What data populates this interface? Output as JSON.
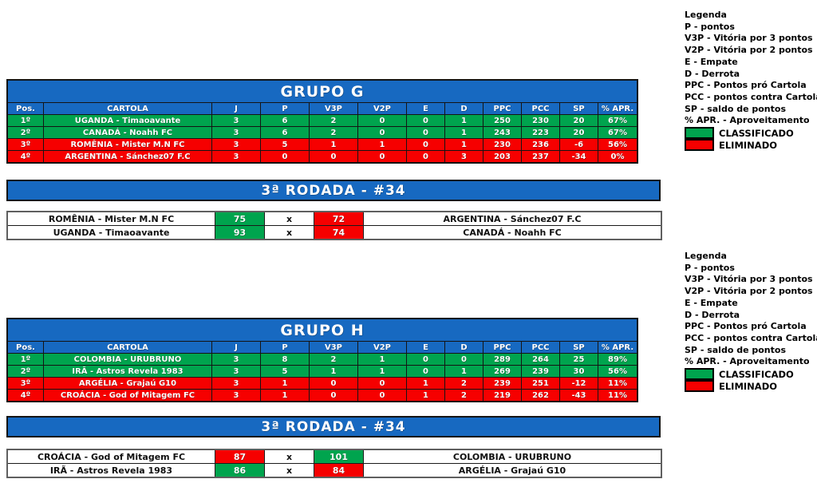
{
  "colors": {
    "blue": "#1769C1",
    "green": "#00A44E",
    "red": "#F60000"
  },
  "legend": {
    "title": "Legenda",
    "items": [
      "P - pontos",
      "V3P - Vitória por 3 pontos",
      "V2P - Vitória por 2 pontos",
      "E - Empate",
      "D - Derrota",
      "PPC - Pontos pró Cartola",
      "PCC - pontos contra Cartola",
      "SP - saldo de pontos",
      "% APR. - Aproveitamento"
    ],
    "classified_label": "CLASSIFICADO",
    "eliminated_label": "ELIMINADO"
  },
  "tables": [
    {
      "title": "GRUPO G",
      "headers": [
        "Pos.",
        "CARTOLA",
        "J",
        "P",
        "V3P",
        "V2P",
        "E",
        "D",
        "PPC",
        "PCC",
        "SP",
        "% APR."
      ],
      "rows": [
        {
          "pos": "1º",
          "cartola": "UGANDA - Timaoavante",
          "status": "classified",
          "values": [
            "3",
            "6",
            "2",
            "0",
            "0",
            "1",
            "250",
            "230",
            "20",
            "67%"
          ]
        },
        {
          "pos": "2º",
          "cartola": "CANADÁ - Noahh FC",
          "status": "classified",
          "values": [
            "3",
            "6",
            "2",
            "0",
            "0",
            "1",
            "243",
            "223",
            "20",
            "67%"
          ]
        },
        {
          "pos": "3º",
          "cartola": "ROMÊNIA - Mister M.N FC",
          "status": "eliminated",
          "values": [
            "3",
            "5",
            "1",
            "1",
            "0",
            "1",
            "230",
            "236",
            "-6",
            "56%"
          ]
        },
        {
          "pos": "4º",
          "cartola": "ARGENTINA - Sánchez07 F.C",
          "status": "eliminated",
          "values": [
            "3",
            "0",
            "0",
            "0",
            "0",
            "3",
            "203",
            "237",
            "-34",
            "0%"
          ]
        }
      ],
      "round": {
        "title": "3ª RODADA - #34",
        "matches": [
          {
            "home": "ROMÊNIA - Mister M.N FC",
            "home_score": "75",
            "home_result": "win",
            "separator": "x",
            "away_score": "72",
            "away_result": "loss",
            "away": "ARGENTINA - Sánchez07 F.C"
          },
          {
            "home": "UGANDA - Timaoavante",
            "home_score": "93",
            "home_result": "win",
            "separator": "x",
            "away_score": "74",
            "away_result": "loss",
            "away": "CANADÁ - Noahh FC"
          }
        ]
      }
    },
    {
      "title": "GRUPO H",
      "headers": [
        "Pos.",
        "CARTOLA",
        "J",
        "P",
        "V3P",
        "V2P",
        "E",
        "D",
        "PPC",
        "PCC",
        "SP",
        "% APR."
      ],
      "rows": [
        {
          "pos": "1º",
          "cartola": "COLOMBIA - URUBRUNO",
          "status": "classified",
          "values": [
            "3",
            "8",
            "2",
            "1",
            "0",
            "0",
            "289",
            "264",
            "25",
            "89%"
          ]
        },
        {
          "pos": "2º",
          "cartola": "IRÃ - Astros Revela 1983",
          "status": "classified",
          "values": [
            "3",
            "5",
            "1",
            "1",
            "0",
            "1",
            "269",
            "239",
            "30",
            "56%"
          ]
        },
        {
          "pos": "3º",
          "cartola": "ARGÉLIA - Grajaú G10",
          "status": "eliminated",
          "values": [
            "3",
            "1",
            "0",
            "0",
            "1",
            "2",
            "239",
            "251",
            "-12",
            "11%"
          ]
        },
        {
          "pos": "4º",
          "cartola": "CROÁCIA - God of Mitagem FC",
          "status": "eliminated",
          "values": [
            "3",
            "1",
            "0",
            "0",
            "1",
            "2",
            "219",
            "262",
            "-43",
            "11%"
          ]
        }
      ],
      "round": {
        "title": "3ª RODADA - #34",
        "matches": [
          {
            "home": "CROÁCIA - God of Mitagem FC",
            "home_score": "87",
            "home_result": "loss",
            "separator": "x",
            "away_score": "101",
            "away_result": "win",
            "away": "COLOMBIA - URUBRUNO"
          },
          {
            "home": "IRÃ - Astros Revela 1983",
            "home_score": "86",
            "home_result": "win",
            "separator": "x",
            "away_score": "84",
            "away_result": "loss",
            "away": "ARGÉLIA - Grajaú G10"
          }
        ]
      }
    }
  ]
}
